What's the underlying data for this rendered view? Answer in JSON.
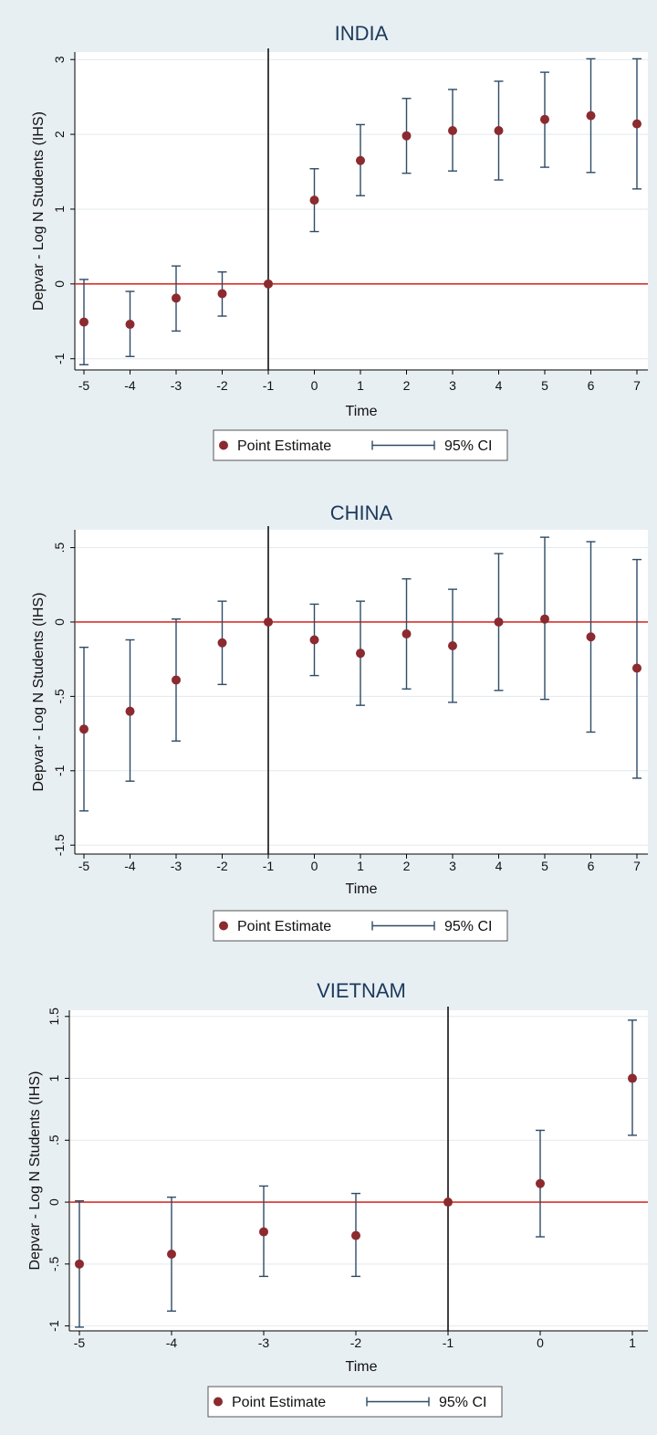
{
  "colors": {
    "background": "#e8eff3",
    "plot_area": "#ffffff",
    "point": "#8b2a2f",
    "ci": "#2e4b66",
    "zero_line": "#d9302a",
    "event_line": "#111111",
    "title": "#1b3a5c"
  },
  "legend": {
    "point_label": "Point Estimate",
    "ci_label": "95% CI"
  },
  "chart_data": [
    {
      "type": "scatter",
      "title": "INDIA",
      "xlabel": "Time",
      "ylabel": "Depvar - Log N Students (IHS)",
      "x_ticks": [
        -5,
        -4,
        -3,
        -2,
        -1,
        0,
        1,
        2,
        3,
        4,
        5,
        6,
        7
      ],
      "y_ticks": [
        -1,
        0,
        1,
        2,
        3
      ],
      "y_tick_labels": [
        "-1",
        "0",
        "1",
        "2",
        "3"
      ],
      "xlim": [
        -5,
        7
      ],
      "ylim": [
        -1.15,
        3.1
      ],
      "reference_x": -1,
      "reference_y": 0,
      "legend_position": "bottom",
      "grid": true,
      "x": [
        -5,
        -4,
        -3,
        -2,
        -1,
        0,
        1,
        2,
        3,
        4,
        5,
        6,
        7
      ],
      "estimate": [
        -0.51,
        -0.54,
        -0.19,
        -0.13,
        0,
        1.12,
        1.65,
        1.98,
        2.05,
        2.05,
        2.2,
        2.25,
        2.14
      ],
      "ci_low": [
        -1.08,
        -0.97,
        -0.63,
        -0.43,
        0,
        0.7,
        1.18,
        1.48,
        1.51,
        1.39,
        1.56,
        1.49,
        1.27
      ],
      "ci_high": [
        0.06,
        -0.1,
        0.24,
        0.16,
        0,
        1.54,
        2.13,
        2.48,
        2.6,
        2.71,
        2.83,
        3.01,
        3.01
      ]
    },
    {
      "type": "scatter",
      "title": "CHINA",
      "xlabel": "Time",
      "ylabel": "Depvar - Log N Students (IHS)",
      "x_ticks": [
        -5,
        -4,
        -3,
        -2,
        -1,
        0,
        1,
        2,
        3,
        4,
        5,
        6,
        7
      ],
      "y_ticks": [
        -1.5,
        -1,
        -0.5,
        0,
        0.5
      ],
      "y_tick_labels": [
        "-1.5",
        "-1",
        "-.5",
        "0",
        ".5"
      ],
      "xlim": [
        -5,
        7
      ],
      "ylim": [
        -1.56,
        0.62
      ],
      "reference_x": -1,
      "reference_y": 0,
      "legend_position": "bottom",
      "grid": true,
      "x": [
        -5,
        -4,
        -3,
        -2,
        -1,
        0,
        1,
        2,
        3,
        4,
        5,
        6,
        7
      ],
      "estimate": [
        -0.72,
        -0.6,
        -0.39,
        -0.14,
        0,
        -0.12,
        -0.21,
        -0.08,
        -0.16,
        0,
        0.02,
        -0.1,
        -0.31
      ],
      "ci_low": [
        -1.27,
        -1.07,
        -0.8,
        -0.42,
        0,
        -0.36,
        -0.56,
        -0.45,
        -0.54,
        -0.46,
        -0.52,
        -0.74,
        -1.05
      ],
      "ci_high": [
        -0.17,
        -0.12,
        0.02,
        0.14,
        0,
        0.12,
        0.14,
        0.29,
        0.22,
        0.46,
        0.57,
        0.54,
        0.42
      ]
    },
    {
      "type": "scatter",
      "title": "VIETNAM",
      "xlabel": "Time",
      "ylabel": "Depvar - Log N Students (IHS)",
      "x_ticks": [
        -5,
        -4,
        -3,
        -2,
        -1,
        0,
        1
      ],
      "y_ticks": [
        -1,
        -0.5,
        0,
        0.5,
        1,
        1.5
      ],
      "y_tick_labels": [
        "-1",
        "-.5",
        "0",
        ".5",
        "1",
        "1.5"
      ],
      "xlim": [
        -5,
        1
      ],
      "ylim": [
        -1.04,
        1.55
      ],
      "reference_x": -1,
      "reference_y": 0,
      "legend_position": "bottom",
      "grid": true,
      "x": [
        -5,
        -4,
        -3,
        -2,
        -1,
        0,
        1
      ],
      "estimate": [
        -0.5,
        -0.42,
        -0.24,
        -0.27,
        0,
        0.15,
        1.0
      ],
      "ci_low": [
        -1.01,
        -0.88,
        -0.6,
        -0.6,
        0,
        -0.28,
        0.54
      ],
      "ci_high": [
        0.01,
        0.04,
        0.13,
        0.07,
        0,
        0.58,
        1.47
      ]
    }
  ]
}
